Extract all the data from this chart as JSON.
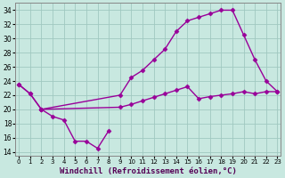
{
  "bg_color": "#c8e8e0",
  "grid_color": "#a0c8c0",
  "line_color": "#990099",
  "marker": "D",
  "markersize": 2.5,
  "linewidth": 1.0,
  "xlabel": "Windchill (Refroidissement éolien,°C)",
  "xlabel_fontsize": 6.5,
  "ylabel_ticks": [
    14,
    16,
    18,
    20,
    22,
    24,
    26,
    28,
    30,
    32,
    34
  ],
  "xticks": [
    0,
    1,
    2,
    3,
    4,
    5,
    6,
    7,
    8,
    9,
    10,
    11,
    12,
    13,
    14,
    15,
    16,
    17,
    18,
    19,
    20,
    21,
    22,
    23
  ],
  "xlim": [
    -0.3,
    23.3
  ],
  "ylim": [
    13.5,
    35.0
  ],
  "s1_x": [
    0,
    1,
    2,
    3,
    4,
    5,
    6,
    7,
    8
  ],
  "s1_y": [
    23.5,
    22.2,
    20.0,
    19.0,
    18.5,
    15.5,
    15.5,
    14.5,
    17.0
  ],
  "s2_x": [
    0,
    1,
    2,
    9,
    10,
    11,
    12,
    13,
    14,
    15,
    16,
    17,
    18,
    19,
    20,
    21,
    22,
    23
  ],
  "s2_y": [
    23.5,
    22.2,
    20.0,
    20.3,
    20.7,
    21.2,
    21.7,
    22.2,
    22.7,
    23.2,
    21.5,
    21.8,
    22.0,
    22.2,
    22.5,
    22.2,
    22.5,
    22.5
  ],
  "s3_x": [
    2,
    9,
    10,
    11,
    12,
    13,
    14,
    15,
    16,
    17,
    18,
    19,
    20,
    21,
    22,
    23
  ],
  "s3_y": [
    20.0,
    22.0,
    24.5,
    25.5,
    27.0,
    28.5,
    31.0,
    32.5,
    33.0,
    33.5,
    34.0,
    34.0,
    30.5,
    27.0,
    24.0,
    22.5
  ]
}
